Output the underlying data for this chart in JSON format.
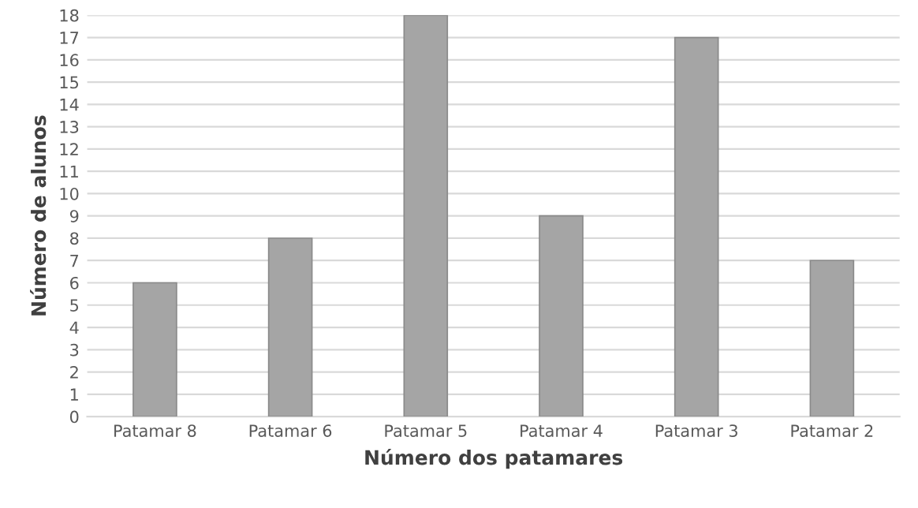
{
  "chart_data": {
    "type": "bar",
    "xlabel": "Número dos patamares",
    "ylabel": "Número de alunos",
    "categories": [
      "Patamar 8",
      "Patamar 6",
      "Patamar 5",
      "Patamar 4",
      "Patamar 3",
      "Patamar 2"
    ],
    "values": [
      6,
      8,
      18,
      9,
      17,
      7
    ],
    "color": "#a5a5a5",
    "ylim": [
      0,
      18
    ],
    "yticks": [
      0,
      1,
      2,
      3,
      4,
      5,
      6,
      7,
      8,
      9,
      10,
      11,
      12,
      13,
      14,
      15,
      16,
      17,
      18
    ],
    "grid": "y"
  }
}
